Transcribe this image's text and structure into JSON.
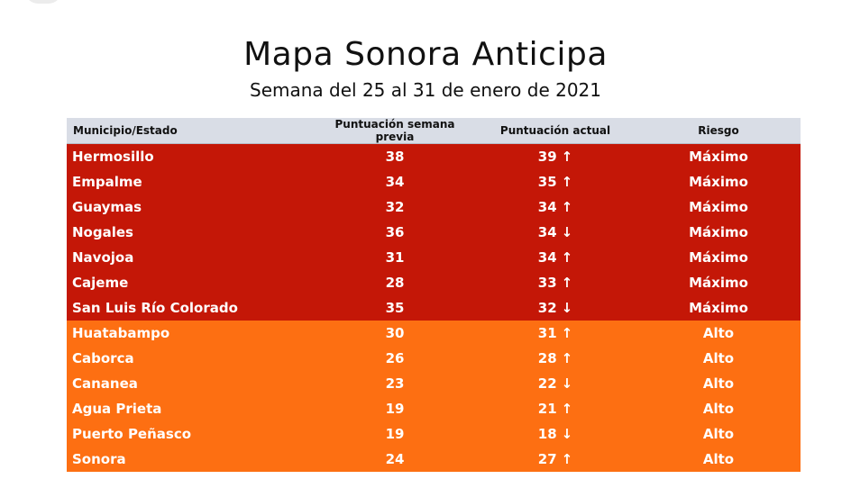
{
  "title": "Mapa Sonora Anticipa",
  "subtitle": "Semana del 25 al 31 de enero de 2021",
  "colors": {
    "maximo": "#c41707",
    "alto": "#fd6f12",
    "header": "#d9dde6"
  },
  "table": {
    "headers": [
      "Municipio/Estado",
      "Puntuación semana previa",
      "Puntuación actual",
      "Riesgo"
    ],
    "rows": [
      {
        "municipio": "Hermosillo",
        "previa": "38",
        "actual": "39",
        "arrow": "↑",
        "riesgo": "Máximo",
        "level": "max"
      },
      {
        "municipio": "Empalme",
        "previa": "34",
        "actual": "35",
        "arrow": "↑",
        "riesgo": "Máximo",
        "level": "max"
      },
      {
        "municipio": "Guaymas",
        "previa": "32",
        "actual": "34",
        "arrow": "↑",
        "riesgo": "Máximo",
        "level": "max"
      },
      {
        "municipio": "Nogales",
        "previa": "36",
        "actual": "34",
        "arrow": "↓",
        "riesgo": "Máximo",
        "level": "max"
      },
      {
        "municipio": "Navojoa",
        "previa": "31",
        "actual": "34",
        "arrow": "↑",
        "riesgo": "Máximo",
        "level": "max"
      },
      {
        "municipio": "Cajeme",
        "previa": "28",
        "actual": "33",
        "arrow": "↑",
        "riesgo": "Máximo",
        "level": "max"
      },
      {
        "municipio": "San Luis Río Colorado",
        "previa": "35",
        "actual": "32",
        "arrow": "↓",
        "riesgo": "Máximo",
        "level": "max"
      },
      {
        "municipio": "Huatabampo",
        "previa": "30",
        "actual": "31",
        "arrow": "↑",
        "riesgo": "Alto",
        "level": "alto"
      },
      {
        "municipio": "Caborca",
        "previa": "26",
        "actual": "28",
        "arrow": "↑",
        "riesgo": "Alto",
        "level": "alto"
      },
      {
        "municipio": "Cananea",
        "previa": "23",
        "actual": "22",
        "arrow": "↓",
        "riesgo": "Alto",
        "level": "alto"
      },
      {
        "municipio": "Agua Prieta",
        "previa": "19",
        "actual": "21",
        "arrow": "↑",
        "riesgo": "Alto",
        "level": "alto"
      },
      {
        "municipio": "Puerto Peñasco",
        "previa": "19",
        "actual": "18",
        "arrow": "↓",
        "riesgo": "Alto",
        "level": "alto"
      },
      {
        "municipio": "Sonora",
        "previa": "24",
        "actual": "27",
        "arrow": "↑",
        "riesgo": "Alto",
        "level": "alto"
      }
    ]
  }
}
